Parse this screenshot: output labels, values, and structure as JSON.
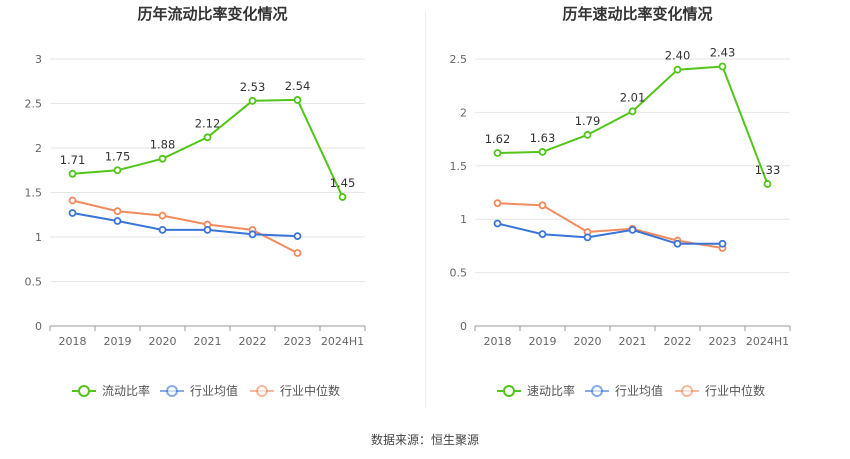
{
  "colors": {
    "primary": "#52c41a",
    "avg": "#3a74d6",
    "median": "#f28a5e",
    "grid": "#e6e6e6",
    "axis": "#999999"
  },
  "source": {
    "prefix": "数据来源：",
    "name": "恒生聚源"
  },
  "chart_data": [
    {
      "type": "line",
      "title": "历年流动比率变化情况",
      "categories": [
        "2018",
        "2019",
        "2020",
        "2021",
        "2022",
        "2023",
        "2024H1"
      ],
      "ylim": [
        0,
        3
      ],
      "yticks": [
        "0",
        "0.5",
        "1",
        "1.5",
        "2",
        "2.5",
        "3"
      ],
      "ytick_values": [
        0,
        0.5,
        1,
        1.5,
        2,
        2.5,
        3
      ],
      "grid": true,
      "legend_position": "bottom",
      "series": [
        {
          "name": "流动比率",
          "color_key": "primary",
          "show_labels": true,
          "values": [
            1.71,
            1.75,
            1.88,
            2.12,
            2.53,
            2.54,
            1.45
          ],
          "labels": [
            "1.71",
            "1.75",
            "1.88",
            "2.12",
            "2.53",
            "2.54",
            "1.45"
          ]
        },
        {
          "name": "行业均值",
          "color_key": "avg",
          "show_labels": false,
          "values": [
            1.27,
            1.18,
            1.08,
            1.08,
            1.03,
            1.01,
            null
          ]
        },
        {
          "name": "行业中位数",
          "color_key": "median",
          "show_labels": false,
          "values": [
            1.41,
            1.29,
            1.24,
            1.14,
            1.08,
            0.82,
            null
          ]
        }
      ]
    },
    {
      "type": "line",
      "title": "历年速动比率变化情况",
      "categories": [
        "2018",
        "2019",
        "2020",
        "2021",
        "2022",
        "2023",
        "2024H1"
      ],
      "ylim": [
        0,
        2.5
      ],
      "yticks": [
        "0",
        "0.5",
        "1",
        "1.5",
        "2",
        "2.5"
      ],
      "ytick_values": [
        0,
        0.5,
        1,
        1.5,
        2,
        2.5
      ],
      "grid": true,
      "legend_position": "bottom",
      "series": [
        {
          "name": "速动比率",
          "color_key": "primary",
          "show_labels": true,
          "values": [
            1.62,
            1.63,
            1.79,
            2.01,
            2.4,
            2.43,
            1.33
          ],
          "labels": [
            "1.62",
            "1.63",
            "1.79",
            "2.01",
            "2.40",
            "2.43",
            "1.33"
          ]
        },
        {
          "name": "行业均值",
          "color_key": "avg",
          "show_labels": false,
          "values": [
            0.96,
            0.86,
            0.83,
            0.9,
            0.77,
            0.77,
            null
          ]
        },
        {
          "name": "行业中位数",
          "color_key": "median",
          "show_labels": false,
          "values": [
            1.15,
            1.13,
            0.88,
            0.91,
            0.8,
            0.73,
            null
          ]
        }
      ]
    }
  ]
}
